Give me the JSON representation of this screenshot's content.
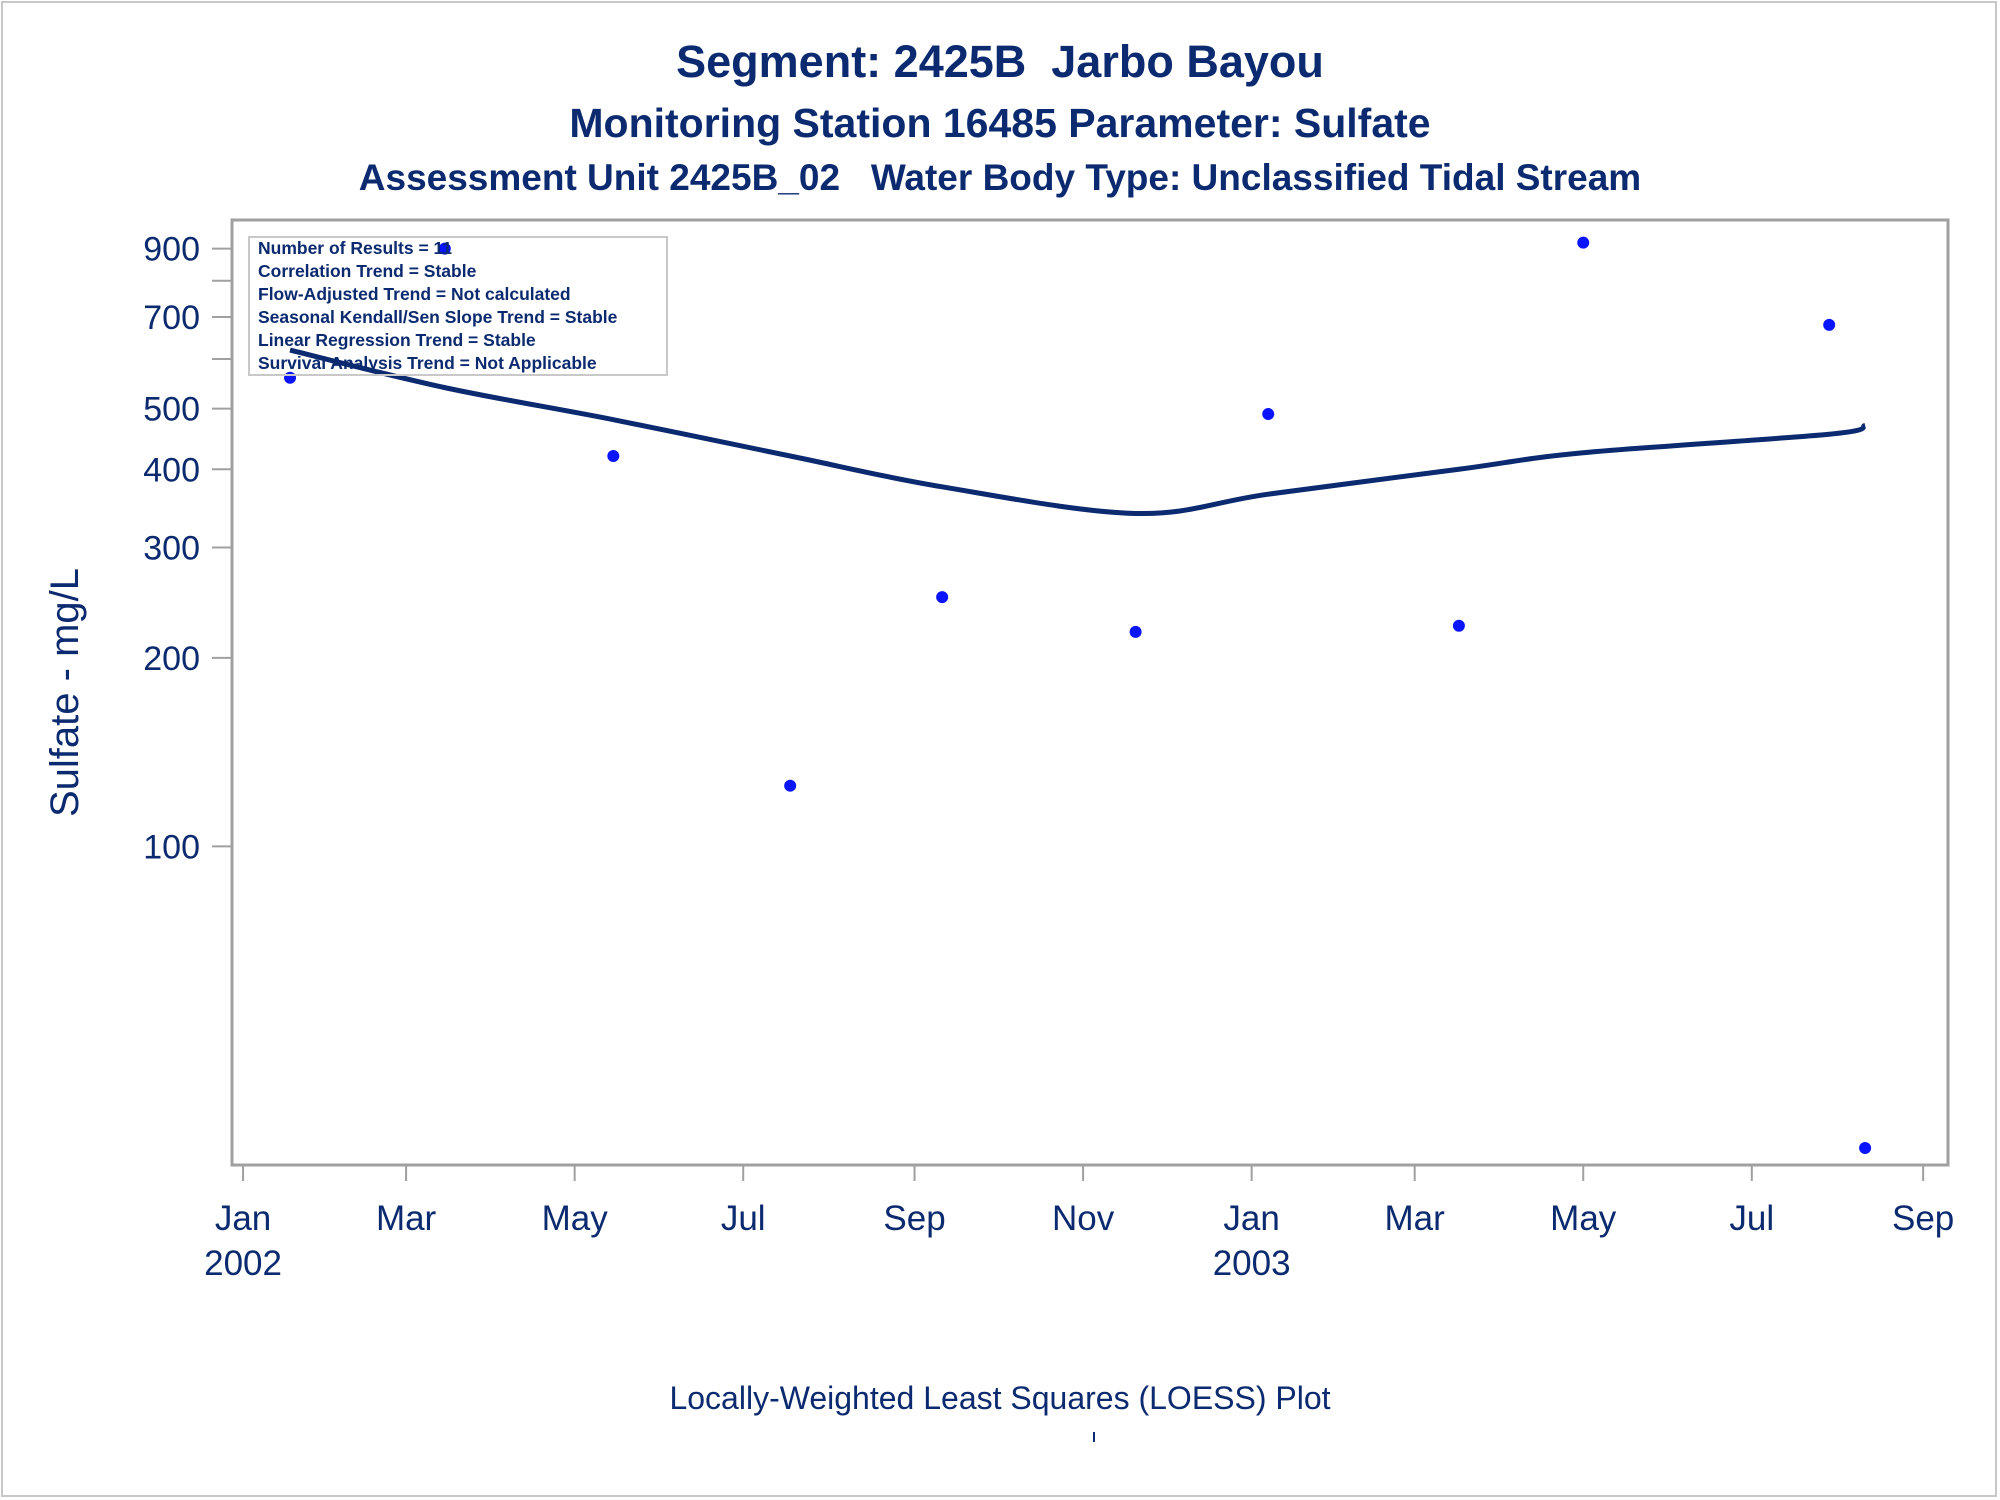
{
  "titles": {
    "line1": "Segment: 2425B  Jarbo Bayou",
    "line2": "Monitoring Station 16485 Parameter: Sulfate",
    "line3": "Assessment Unit 2425B_02   Water Body Type: Unclassified Tidal Stream"
  },
  "legend": [
    "Number of Results = 11",
    "Correlation Trend = Stable",
    "Flow-Adjusted Trend = Not calculated",
    "Seasonal Kendall/Sen Slope Trend = Stable",
    "Linear Regression Trend = Stable",
    "Survival Analysis Trend = Not Applicable"
  ],
  "footnote": "Locally-Weighted Least Squares (LOESS) Plot",
  "colors": {
    "text": "#0b2a6f",
    "points": "#0a14ff",
    "line": "#0b2a6f",
    "axis": "#a0a0a0"
  },
  "chart_data": {
    "type": "scatter",
    "title": "Segment: 2425B  Jarbo Bayou",
    "ylabel": "Sulfate - mg/L",
    "xlabel": "",
    "yscale": "log",
    "ylim": [
      31,
      1000
    ],
    "xlim": [
      "2001-12-28",
      "2003-09-10"
    ],
    "yticks": [
      100,
      200,
      300,
      400,
      500,
      700,
      900
    ],
    "yticks_minor": [
      600,
      800
    ],
    "xticks": [
      {
        "date": "2002-01-01",
        "label": "Jan",
        "year": "2002"
      },
      {
        "date": "2002-03-01",
        "label": "Mar",
        "year": ""
      },
      {
        "date": "2002-05-01",
        "label": "May",
        "year": ""
      },
      {
        "date": "2002-07-01",
        "label": "Jul",
        "year": ""
      },
      {
        "date": "2002-09-01",
        "label": "Sep",
        "year": ""
      },
      {
        "date": "2002-11-01",
        "label": "Nov",
        "year": ""
      },
      {
        "date": "2003-01-01",
        "label": "Jan",
        "year": "2003"
      },
      {
        "date": "2003-03-01",
        "label": "Mar",
        "year": ""
      },
      {
        "date": "2003-05-01",
        "label": "May",
        "year": ""
      },
      {
        "date": "2003-07-01",
        "label": "Jul",
        "year": ""
      },
      {
        "date": "2003-09-01",
        "label": "Sep",
        "year": ""
      }
    ],
    "series": [
      {
        "kind": "points",
        "x": [
          "2002-01-18",
          "2002-03-15",
          "2002-05-15",
          "2002-07-18",
          "2002-09-11",
          "2002-11-20",
          "2003-01-07",
          "2003-03-17",
          "2003-05-01",
          "2003-07-29",
          "2003-08-11"
        ],
        "y": [
          560,
          900,
          420,
          125,
          250,
          220,
          490,
          225,
          920,
          680,
          33
        ]
      },
      {
        "kind": "loess",
        "x": [
          "2002-01-18",
          "2002-03-15",
          "2002-05-15",
          "2002-07-18",
          "2002-09-11",
          "2002-11-20",
          "2003-01-07",
          "2003-03-17",
          "2003-05-01",
          "2003-07-29",
          "2003-08-11"
        ],
        "y": [
          620,
          540,
          480,
          420,
          375,
          340,
          365,
          400,
          425,
          455,
          470
        ]
      }
    ],
    "grid": false,
    "legend": "top-left"
  }
}
